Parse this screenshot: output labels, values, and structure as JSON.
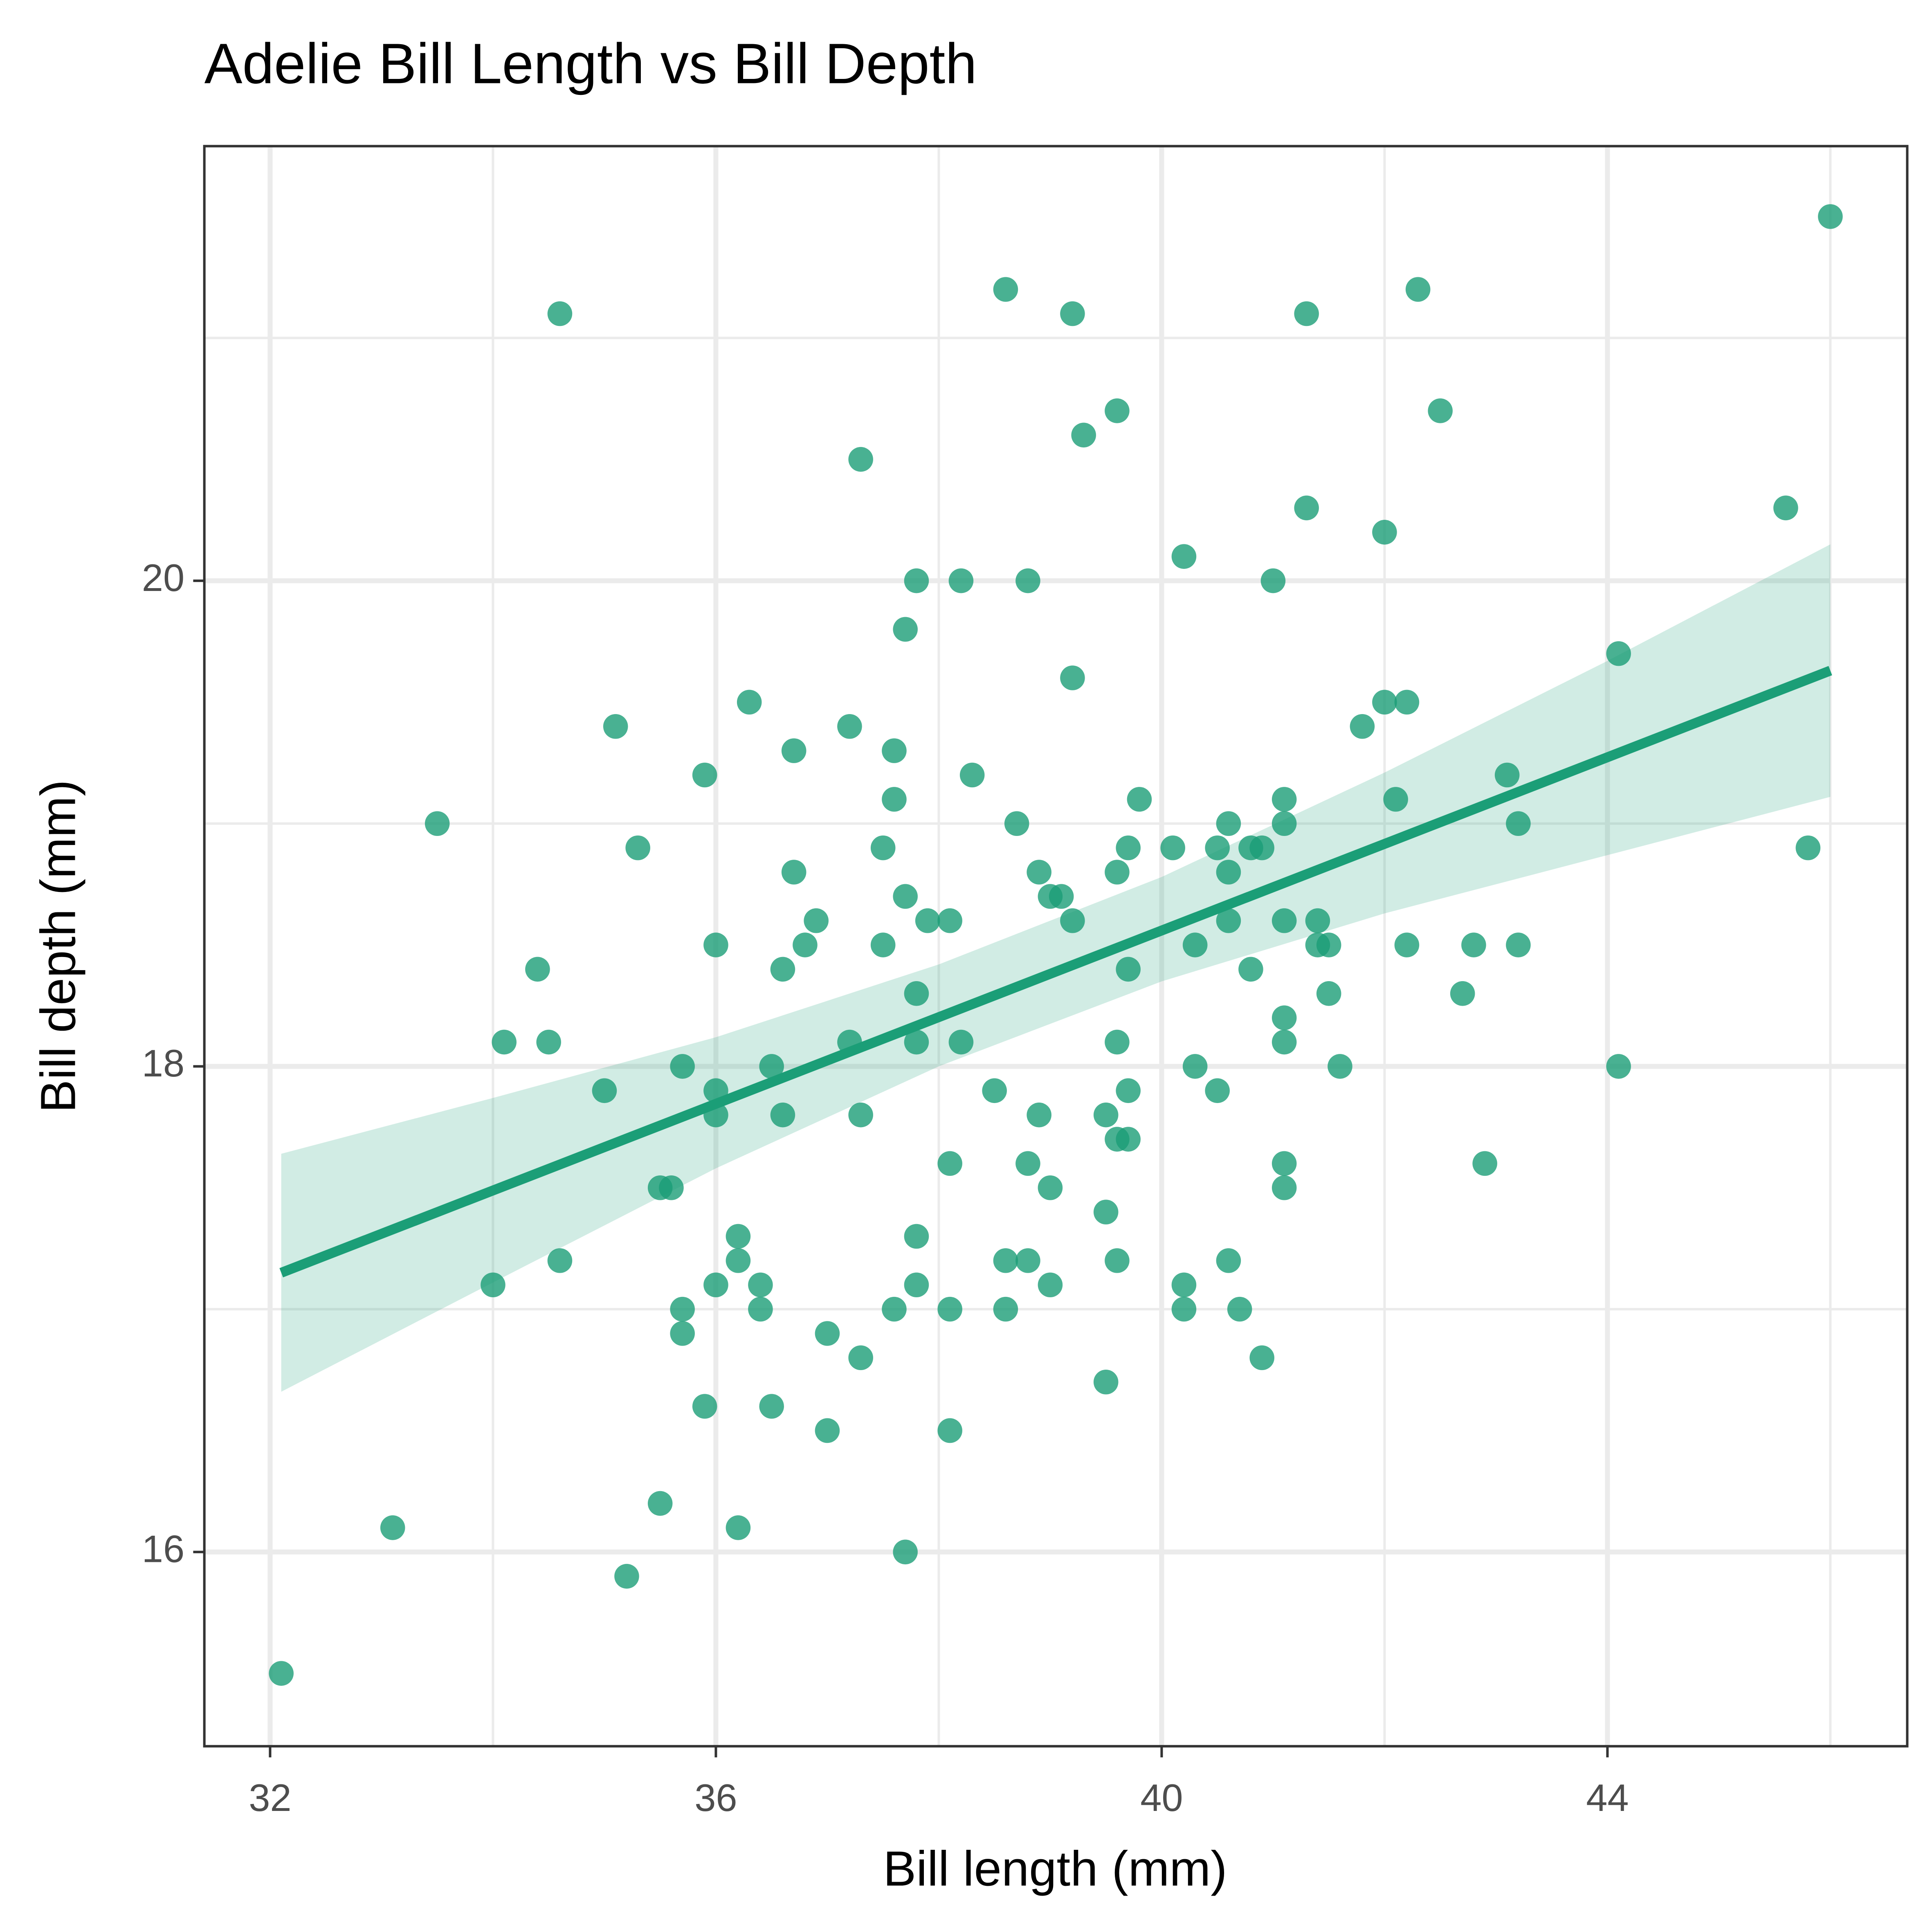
{
  "chart_data": {
    "type": "scatter",
    "title": "Adelie Bill Length vs Bill Depth",
    "x_label": "Bill length (mm)",
    "y_label": "Bill depth (mm)",
    "color": "#1b9e77",
    "grid": true,
    "xlim": [
      31.41,
      46.69
    ],
    "ylim": [
      15.2,
      21.79
    ],
    "xticks": [
      32,
      36,
      40,
      44
    ],
    "yticks": [
      16,
      18,
      20
    ],
    "minor_xticks": [
      34,
      38,
      42,
      46
    ],
    "minor_yticks": [
      17,
      19,
      21
    ],
    "x": [
      32.1,
      33.1,
      33.5,
      34.0,
      34.1,
      34.4,
      34.5,
      34.6,
      34.6,
      35.0,
      35.1,
      35.2,
      35.3,
      35.5,
      35.5,
      35.6,
      35.7,
      35.7,
      35.7,
      35.9,
      35.9,
      36.0,
      36.0,
      36.0,
      36.0,
      36.2,
      36.2,
      36.2,
      36.3,
      36.4,
      36.4,
      36.5,
      36.5,
      36.6,
      36.6,
      36.7,
      36.7,
      36.8,
      36.9,
      37.0,
      37.0,
      37.2,
      37.2,
      37.3,
      37.3,
      37.3,
      37.5,
      37.5,
      37.6,
      37.6,
      37.6,
      37.7,
      37.7,
      37.7,
      37.8,
      37.8,
      37.8,
      37.8,
      37.8,
      37.9,
      38.1,
      38.1,
      38.1,
      38.1,
      38.2,
      38.2,
      38.3,
      38.5,
      38.6,
      38.6,
      38.6,
      38.7,
      38.8,
      38.8,
      38.8,
      38.9,
      38.9,
      39.0,
      39.0,
      39.0,
      39.1,
      39.2,
      39.2,
      39.2,
      39.3,
      39.5,
      39.5,
      39.5,
      39.6,
      39.6,
      39.6,
      39.6,
      39.6,
      39.7,
      39.7,
      39.7,
      39.7,
      39.8,
      40.1,
      40.2,
      40.2,
      40.2,
      40.3,
      40.3,
      40.5,
      40.5,
      40.6,
      40.6,
      40.6,
      40.6,
      40.7,
      40.8,
      40.8,
      40.9,
      40.9,
      41.0,
      41.1,
      41.1,
      41.1,
      41.1,
      41.1,
      41.1,
      41.1,
      41.3,
      41.3,
      41.4,
      41.4,
      41.5,
      41.5,
      41.6,
      41.8,
      42.0,
      42.0,
      42.1,
      42.2,
      42.2,
      42.3,
      42.5,
      42.7,
      42.8,
      42.9,
      43.1,
      43.2,
      43.2,
      44.1,
      44.1,
      45.6,
      45.8,
      46.0
    ],
    "y": [
      15.5,
      16.1,
      19.0,
      17.1,
      18.1,
      18.4,
      18.1,
      21.1,
      17.2,
      17.9,
      19.4,
      15.9,
      18.9,
      17.5,
      16.2,
      17.5,
      18.0,
      17.0,
      16.9,
      19.2,
      16.6,
      18.5,
      17.9,
      17.8,
      17.1,
      17.3,
      17.2,
      16.1,
      19.5,
      17.1,
      17.0,
      18.0,
      16.6,
      18.4,
      17.8,
      19.3,
      18.8,
      18.5,
      18.6,
      16.9,
      16.5,
      19.4,
      18.1,
      20.5,
      17.8,
      16.8,
      18.9,
      18.5,
      19.3,
      19.1,
      17.0,
      19.8,
      18.7,
      16.0,
      20.0,
      18.3,
      18.1,
      17.3,
      17.1,
      18.6,
      18.6,
      17.6,
      17.0,
      16.5,
      20.0,
      18.1,
      19.2,
      17.9,
      21.2,
      17.2,
      17.0,
      19.0,
      20.0,
      17.6,
      17.2,
      18.8,
      17.8,
      18.7,
      17.5,
      17.1,
      18.7,
      21.1,
      19.6,
      18.6,
      20.6,
      17.8,
      17.4,
      16.7,
      20.7,
      18.8,
      18.1,
      17.7,
      17.2,
      18.9,
      18.4,
      17.9,
      17.7,
      19.1,
      18.9,
      20.1,
      17.1,
      17.0,
      18.5,
      18.0,
      18.9,
      17.9,
      19.0,
      18.8,
      18.6,
      17.2,
      17.0,
      18.9,
      18.4,
      18.9,
      16.8,
      20.0,
      19.1,
      19.0,
      18.6,
      18.2,
      18.1,
      17.6,
      17.5,
      21.1,
      20.3,
      18.6,
      18.5,
      18.5,
      18.3,
      18.0,
      19.4,
      20.2,
      19.5,
      19.1,
      19.5,
      18.5,
      21.2,
      20.7,
      18.3,
      18.5,
      17.6,
      19.2,
      19.0,
      18.5,
      19.7,
      18.0,
      20.3,
      18.9,
      21.5
    ],
    "fit": {
      "x": [
        32.1,
        46.0
      ],
      "y": [
        17.15,
        19.63
      ]
    },
    "band": {
      "x": [
        32.1,
        34,
        36,
        38,
        40,
        42,
        44,
        46
      ],
      "lower": [
        16.66,
        17.11,
        17.58,
        18.0,
        18.35,
        18.63,
        18.87,
        19.11
      ],
      "upper": [
        17.64,
        17.87,
        18.12,
        18.42,
        18.78,
        19.21,
        19.67,
        20.15
      ]
    }
  }
}
